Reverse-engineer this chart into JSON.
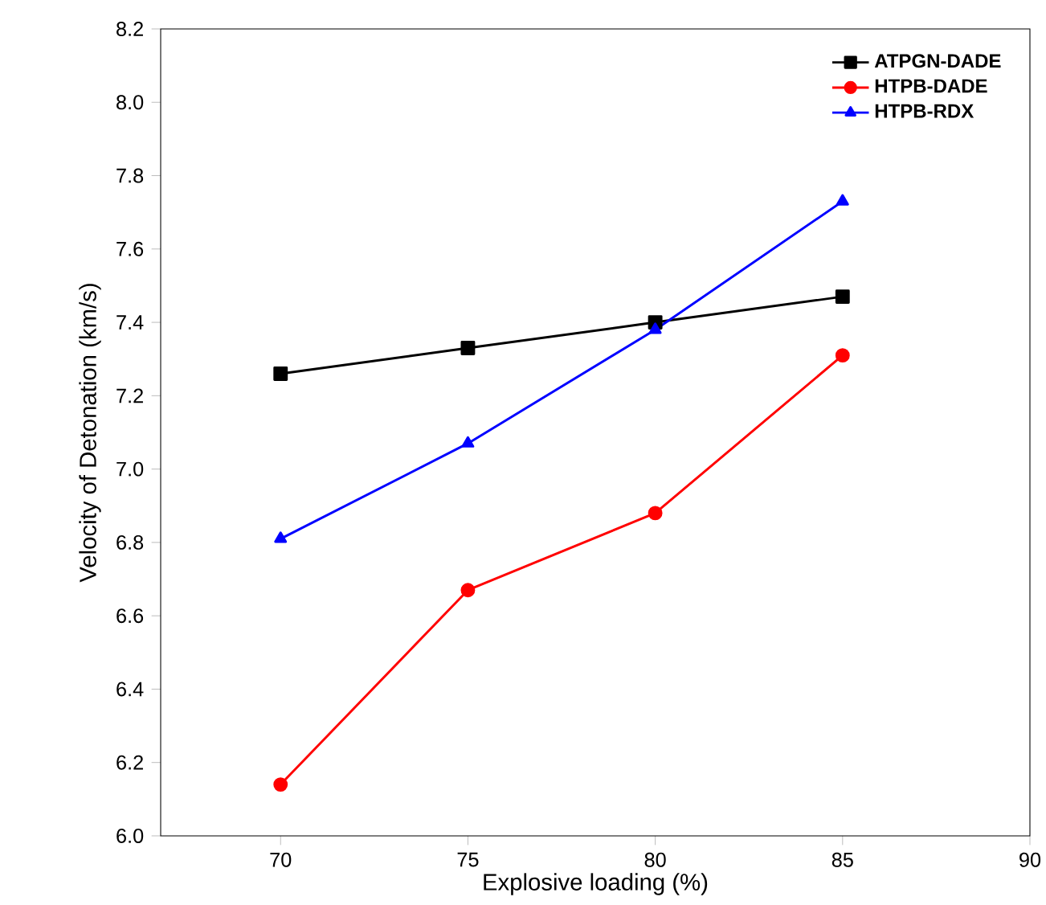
{
  "chart_data": {
    "type": "line",
    "xlabel": "Explosive loading (%)",
    "ylabel": "Velocity of Detonation (km/s)",
    "x": [
      70,
      75,
      80,
      85
    ],
    "series": [
      {
        "name": "ATPGN-DADE",
        "color": "#000000",
        "marker": "square",
        "values": [
          7.26,
          7.33,
          7.4,
          7.47
        ]
      },
      {
        "name": "HTPB-DADE",
        "color": "#ff0000",
        "marker": "circle",
        "values": [
          6.14,
          6.67,
          6.88,
          7.31
        ]
      },
      {
        "name": "HTPB-RDX",
        "color": "#0000ff",
        "marker": "triangle",
        "values": [
          6.81,
          7.07,
          7.38,
          7.73
        ]
      }
    ],
    "xlim": [
      66.8,
      90
    ],
    "xticks": [
      70,
      75,
      80,
      85,
      90
    ],
    "ylim": [
      6.0,
      8.2
    ],
    "yticks": [
      {
        "value": 6.0,
        "label": "6.0"
      },
      {
        "value": 6.2,
        "label": "6.2"
      },
      {
        "value": 6.4,
        "label": "6.4"
      },
      {
        "value": 6.6,
        "label": "6.6"
      },
      {
        "value": 6.8,
        "label": "6.8"
      },
      {
        "value": 7.0,
        "label": "7.0"
      },
      {
        "value": 7.2,
        "label": "7.2"
      },
      {
        "value": 7.4,
        "label": "7.4"
      },
      {
        "value": 7.6,
        "label": "7.6"
      },
      {
        "value": 7.8,
        "label": "7.8"
      },
      {
        "value": 8.0,
        "label": "8.0"
      },
      {
        "value": 8.2,
        "label": "8.2"
      }
    ],
    "legend": "top right",
    "grid": false
  }
}
